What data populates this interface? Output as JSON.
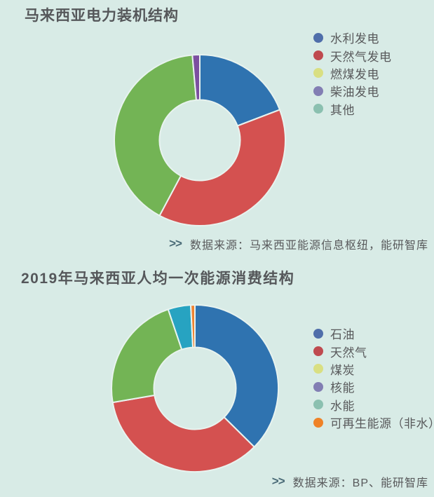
{
  "page": {
    "background_color": "#d8ebe6",
    "title_color": "#55575a",
    "text_color": "#58595b",
    "source_marker_color": "#4a6b77"
  },
  "chart_data": [
    {
      "type": "pie",
      "variant": "donut",
      "title": "马来西亚电力装机结构",
      "categories": [
        "水利发电",
        "天然气发电",
        "燃煤发电",
        "柴油发电",
        "其他"
      ],
      "values": [
        19.2,
        38.6,
        40.8,
        1.4,
        0
      ],
      "unit": "percent (estimated from arc angles)",
      "slice_colors": [
        "#2f73b0",
        "#d45150",
        "#73b455",
        "#7c4fa0",
        "#5ba8a0"
      ],
      "legend_colors": [
        "#4f6eaa",
        "#bf4a4f",
        "#d9df82",
        "#827eb3",
        "#8bc0b0"
      ],
      "legend_position": "right",
      "start_angle": "top",
      "direction": "clockwise",
      "source_marker": ">>",
      "source": "数据来源：马来西亚能源信息枢纽，能研智库"
    },
    {
      "type": "pie",
      "variant": "donut",
      "title": "2019年马来西亚人均一次能源消费结构",
      "categories": [
        "石油",
        "天然气",
        "煤炭",
        "核能",
        "水能",
        "可再生能源（非水）"
      ],
      "values": [
        37.4,
        34.9,
        22.5,
        0,
        4.4,
        0.8
      ],
      "unit": "percent (estimated from arc angles)",
      "slice_colors": [
        "#2f73b0",
        "#d45150",
        "#73b455",
        "#7e57a5",
        "#27a3c1",
        "#f08332"
      ],
      "legend_colors": [
        "#4f6eaa",
        "#bf4a4f",
        "#d9df82",
        "#827eb3",
        "#8bc0b0",
        "#ef8227"
      ],
      "legend_position": "right",
      "start_angle": "top",
      "direction": "clockwise",
      "source_marker": ">>",
      "source": "数据来源：BP、能研智库"
    }
  ]
}
